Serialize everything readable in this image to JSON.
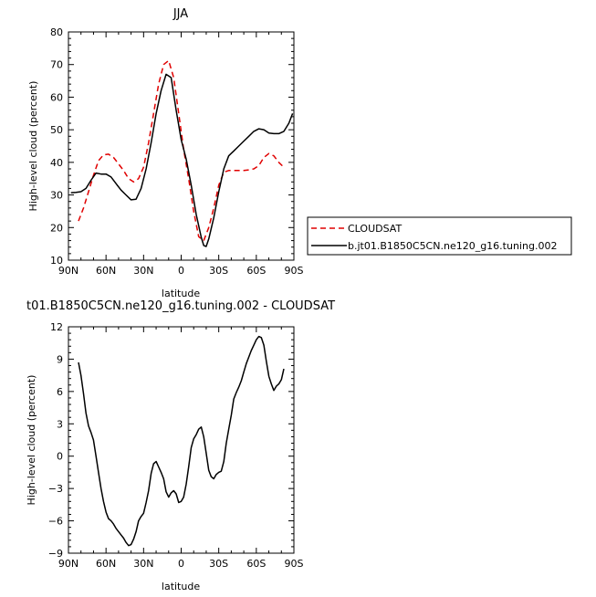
{
  "colors": {
    "cloudsat": "#e00000",
    "model": "#000000",
    "axis": "#000000"
  },
  "chart_data": [
    {
      "type": "line",
      "title": "JJA",
      "xlabel": "latitude",
      "ylabel": "High-level cloud (percent)",
      "xlim": [
        90,
        -90
      ],
      "ylim": [
        10,
        80
      ],
      "xticks": [
        90,
        60,
        30,
        0,
        -30,
        -60,
        -90
      ],
      "xticklabels": [
        "90N",
        "60N",
        "30N",
        "0",
        "30S",
        "60S",
        "90S"
      ],
      "yticks": [
        10,
        20,
        30,
        40,
        50,
        60,
        70,
        80
      ],
      "grid": false,
      "legend_position": "right, outside plot",
      "series": [
        {
          "name": "CLOUDSAT",
          "style": "dashed",
          "color": "#e00000",
          "x": [
            82,
            78,
            74,
            70,
            66,
            62,
            58,
            54,
            50,
            46,
            42,
            38,
            34,
            30,
            26,
            22,
            18,
            14,
            10,
            6,
            2,
            -2,
            -6,
            -10,
            -14,
            -18,
            -22,
            -26,
            -30,
            -34,
            -38,
            -42,
            -46,
            -50,
            -54,
            -58,
            -62,
            -66,
            -70,
            -74,
            -78,
            -82
          ],
          "values": [
            22,
            26,
            31,
            36,
            40.5,
            42.3,
            42.5,
            41.5,
            39.5,
            37.5,
            35,
            34,
            35,
            38.5,
            46,
            55,
            64,
            70,
            71.2,
            66,
            55,
            44,
            35,
            25,
            17.2,
            16,
            20,
            26,
            33,
            37,
            37.5,
            37.5,
            37.5,
            37.5,
            37.7,
            38,
            39,
            41.5,
            42.7,
            42,
            40,
            38.5
          ]
        },
        {
          "name": "b.jt01.B1850C5CN.ne120_g16.tuning.002",
          "style": "solid",
          "color": "#000000",
          "x": [
            88,
            84,
            80,
            76,
            72,
            68,
            64,
            60,
            56,
            52,
            48,
            44,
            40,
            36,
            32,
            28,
            24,
            20,
            16,
            12,
            8,
            4,
            0,
            -4,
            -8,
            -12,
            -16,
            -18,
            -20,
            -22,
            -26,
            -30,
            -34,
            -38,
            -42,
            -46,
            -50,
            -54,
            -58,
            -62,
            -66,
            -70,
            -74,
            -78,
            -82,
            -86,
            -89
          ],
          "values": [
            30.7,
            30.8,
            31,
            32,
            34.5,
            36.7,
            36.4,
            36.4,
            35.5,
            33.5,
            31.5,
            30,
            28.5,
            28.7,
            32,
            38,
            46,
            55,
            62,
            67,
            66,
            56,
            47,
            41,
            33,
            24,
            17,
            14.5,
            14.2,
            16.5,
            23,
            31,
            38,
            42,
            43.5,
            45,
            46.5,
            48,
            49.5,
            50.3,
            50,
            49,
            48.8,
            48.8,
            49.5,
            52,
            55
          ]
        }
      ]
    },
    {
      "type": "line",
      "title": "t01.B1850C5CN.ne120_g16.tuning.002 - CLOUDSAT",
      "xlabel": "latitude",
      "ylabel": "High-level cloud (percent)",
      "xlim": [
        90,
        -90
      ],
      "ylim": [
        -9,
        12
      ],
      "xticks": [
        90,
        60,
        30,
        0,
        -30,
        -60,
        -90
      ],
      "xticklabels": [
        "90N",
        "60N",
        "30N",
        "0",
        "30S",
        "60S",
        "90S"
      ],
      "yticks": [
        -9,
        -6,
        -3,
        0,
        3,
        6,
        9,
        12
      ],
      "grid": false,
      "series": [
        {
          "style": "solid",
          "color": "#000000",
          "x": [
            82,
            80,
            78,
            76,
            74,
            72,
            70,
            68,
            66,
            64,
            62,
            60,
            58,
            56,
            54,
            52,
            50,
            48,
            46,
            44,
            42,
            40,
            38,
            36,
            34,
            32,
            30,
            28,
            26,
            24,
            22,
            20,
            18,
            16,
            14,
            12,
            10,
            8,
            6,
            4,
            2,
            0,
            -2,
            -4,
            -6,
            -8,
            -10,
            -12,
            -14,
            -16,
            -18,
            -20,
            -22,
            -24,
            -26,
            -28,
            -30,
            -32,
            -34,
            -36,
            -38,
            -40,
            -42,
            -44,
            -46,
            -48,
            -50,
            -52,
            -54,
            -56,
            -58,
            -60,
            -62,
            -64,
            -66,
            -68,
            -70,
            -72,
            -74,
            -76,
            -78,
            -80,
            -82
          ],
          "values": [
            8.7,
            7.5,
            5.8,
            4,
            2.8,
            2.2,
            1.5,
            0,
            -1.5,
            -3,
            -4.2,
            -5.2,
            -5.8,
            -6,
            -6.3,
            -6.7,
            -7,
            -7.3,
            -7.6,
            -8,
            -8.3,
            -8.2,
            -7.7,
            -7,
            -6,
            -5.6,
            -5.3,
            -4.3,
            -3.2,
            -1.6,
            -0.7,
            -0.5,
            -1,
            -1.5,
            -2.1,
            -3.3,
            -3.8,
            -3.4,
            -3.2,
            -3.5,
            -4.3,
            -4.2,
            -3.8,
            -2.6,
            -1,
            0.8,
            1.6,
            2,
            2.5,
            2.7,
            1.8,
            0.3,
            -1.3,
            -1.9,
            -2.1,
            -1.7,
            -1.5,
            -1.4,
            -0.5,
            1.2,
            2.5,
            3.8,
            5.3,
            5.9,
            6.4,
            7,
            7.8,
            8.6,
            9.2,
            9.8,
            10.3,
            10.8,
            11.1,
            11,
            10.3,
            8.8,
            7.4,
            6.7,
            6.1,
            6.5,
            6.7,
            7.1,
            8.1
          ]
        }
      ]
    }
  ]
}
